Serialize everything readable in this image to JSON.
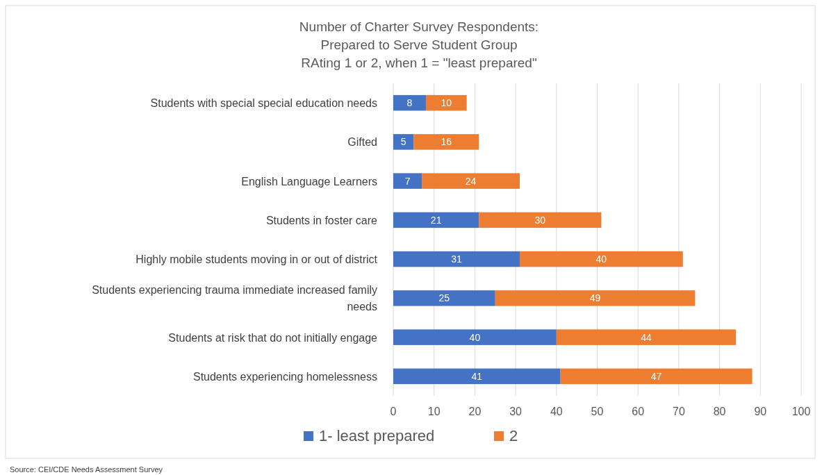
{
  "chart_data": {
    "type": "bar",
    "orientation": "horizontal",
    "stacked": true,
    "title": "Number of Charter Survey Respondents:\nPrepared to Serve Student Group\nRAting 1 or 2, when 1 = \"least prepared\"",
    "categories": [
      "Students with special special education needs",
      "Gifted",
      "English Language Learners",
      "Students in foster care",
      "Highly mobile students  moving in or out of district",
      "Students experiencing trauma immediate increased family needs",
      "Students at risk that do not initially engage",
      "Students experiencing homelessness"
    ],
    "series": [
      {
        "name": "1- least prepared",
        "color": "#4472c4",
        "values": [
          8,
          5,
          7,
          21,
          31,
          25,
          40,
          41
        ]
      },
      {
        "name": "2",
        "color": "#ed7d31",
        "values": [
          10,
          16,
          24,
          30,
          40,
          49,
          44,
          47
        ]
      }
    ],
    "xlim": [
      0,
      100
    ],
    "xticks": [
      0,
      10,
      20,
      30,
      40,
      50,
      60,
      70,
      80,
      90,
      100
    ],
    "grid": "x",
    "legend": "bottom",
    "data_labels": true,
    "annotations": [
      "Source: CEI/CDE Needs Assessment Survey"
    ]
  }
}
